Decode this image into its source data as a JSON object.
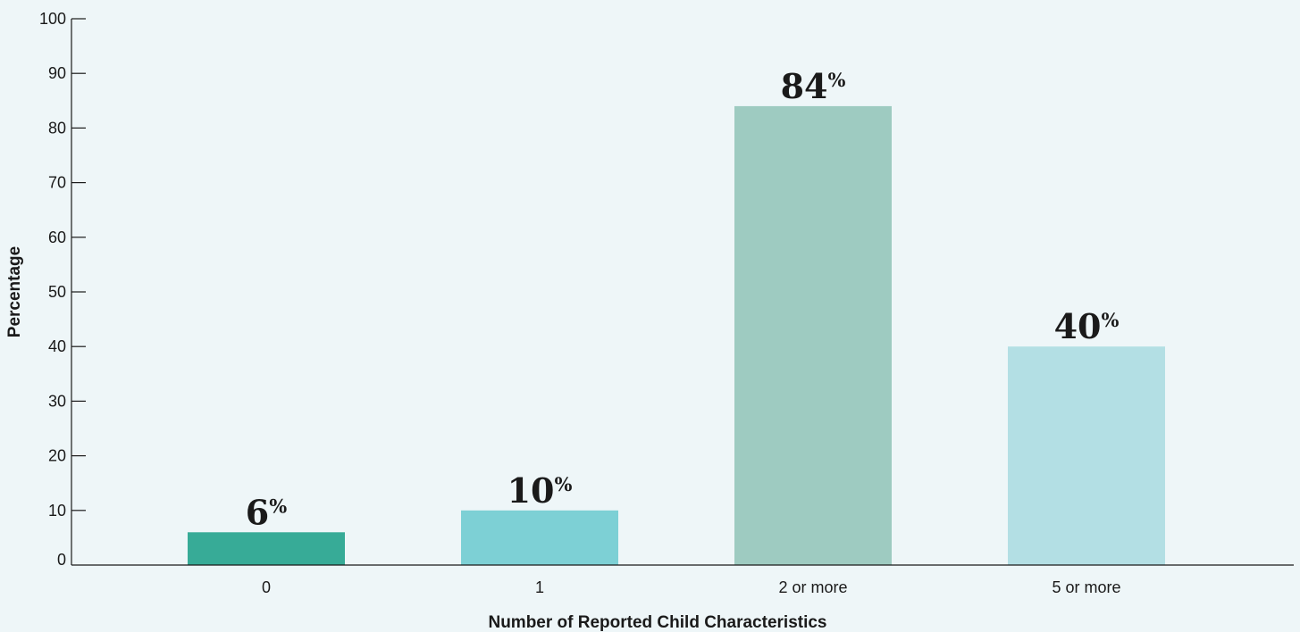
{
  "chart_data": {
    "type": "bar",
    "categories": [
      "0",
      "1",
      "2 or more",
      "5 or more"
    ],
    "values": [
      6,
      10,
      84,
      40
    ],
    "data_labels": [
      "6",
      "10",
      "84",
      "40"
    ],
    "label_suffix": "%",
    "colors": [
      "#37ab97",
      "#7dd0d5",
      "#9ecbc1",
      "#b3dfe4"
    ],
    "title": "",
    "xlabel": "Number of Reported Child Characteristics",
    "ylabel": "Percentage",
    "ylim": [
      0,
      100
    ],
    "yticks": [
      0,
      10,
      20,
      30,
      40,
      50,
      60,
      70,
      80,
      90,
      100
    ],
    "grid": false,
    "legend": "none",
    "background": "#eef6f8"
  }
}
